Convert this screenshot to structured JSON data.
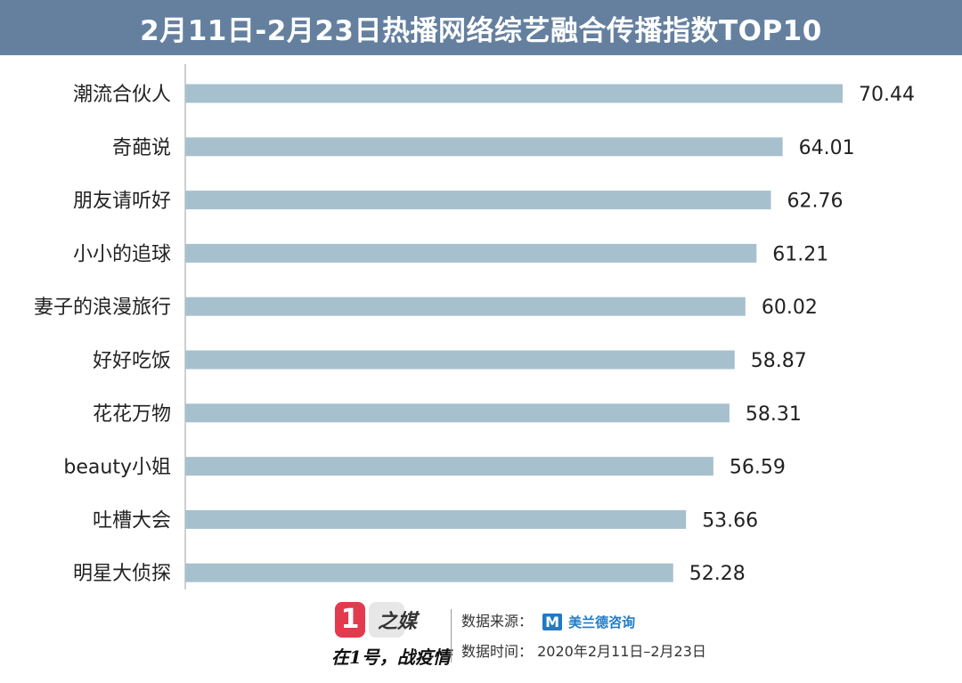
{
  "header": {
    "title": "2月11日-2月23日热播网络综艺融合传播指数TOP10"
  },
  "chart_data": {
    "type": "bar",
    "orientation": "horizontal",
    "categories": [
      "潮流合伙人",
      "奇葩说",
      "朋友请听好",
      "小小的追球",
      "妻子的浪漫旅行",
      "好好吃饭",
      "花花万物",
      "beauty小姐",
      "吐槽大会",
      "明星大侦探"
    ],
    "values": [
      70.44,
      64.01,
      62.76,
      61.21,
      60.02,
      58.87,
      58.31,
      56.59,
      53.66,
      52.28
    ],
    "value_labels": [
      "70.44",
      "64.01",
      "62.76",
      "61.21",
      "60.02",
      "58.87",
      "58.31",
      "56.59",
      "53.66",
      "52.28"
    ],
    "xlim": [
      0,
      70.44
    ],
    "grid": false,
    "bar_color": "#a7c0ce"
  },
  "footer": {
    "logo_one": "1",
    "logo_name": "之媒",
    "slogan": "在1号，战疫情",
    "source_label": "数据来源：",
    "source_brand_mark": "M",
    "source_brand_name": "美兰德咨询",
    "time_label": "数据时间：",
    "time_value": "2020年2月11日–2月23日"
  }
}
